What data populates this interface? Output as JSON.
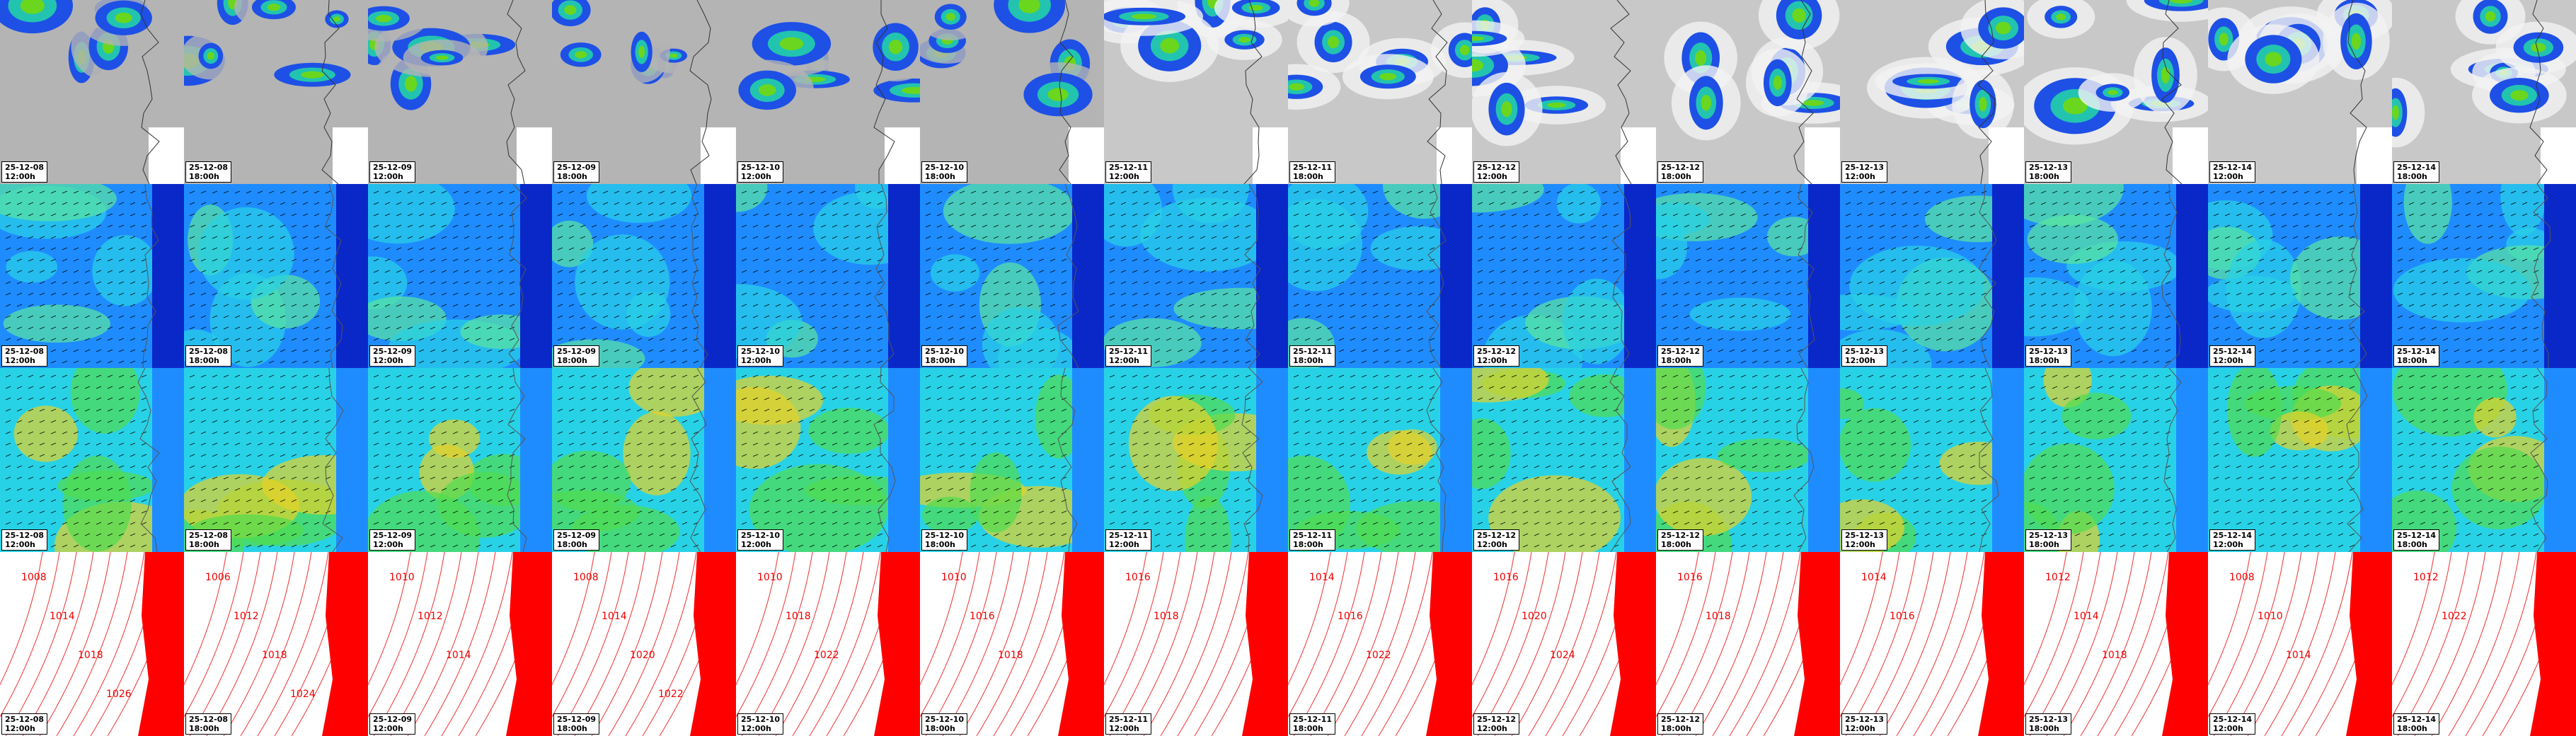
{
  "columns": [
    {
      "date": "25-12-08",
      "time": "12:00h"
    },
    {
      "date": "25-12-08",
      "time": "18:00h"
    },
    {
      "date": "25-12-09",
      "time": "12:00h"
    },
    {
      "date": "25-12-09",
      "time": "18:00h"
    },
    {
      "date": "25-12-10",
      "time": "12:00h"
    },
    {
      "date": "25-12-10",
      "time": "18:00h"
    },
    {
      "date": "25-12-11",
      "time": "12:00h"
    },
    {
      "date": "25-12-11",
      "time": "18:00h"
    },
    {
      "date": "25-12-12",
      "time": "12:00h"
    },
    {
      "date": "25-12-12",
      "time": "18:00h"
    },
    {
      "date": "25-12-13",
      "time": "12:00h"
    },
    {
      "date": "25-12-13",
      "time": "18:00h"
    },
    {
      "date": "25-12-14",
      "time": "12:00h"
    },
    {
      "date": "25-12-14",
      "time": "18:00h"
    }
  ],
  "isobars": [
    [
      "1008",
      "1014",
      "1018",
      "1026"
    ],
    [
      "1006",
      "1012",
      "1018",
      "1024"
    ],
    [
      "1010",
      "1012",
      "1014"
    ],
    [
      "1008",
      "1014",
      "1020",
      "1022"
    ],
    [
      "1010",
      "1018",
      "1022"
    ],
    [
      "1010",
      "1016",
      "1018"
    ],
    [
      "1016",
      "1018"
    ],
    [
      "1014",
      "1016",
      "1022"
    ],
    [
      "1016",
      "1020",
      "1024"
    ],
    [
      "1016",
      "1018"
    ],
    [
      "1014",
      "1016"
    ],
    [
      "1012",
      "1014",
      "1018"
    ],
    [
      "1008",
      "1010",
      "1014"
    ],
    [
      "1012",
      "1022"
    ]
  ]
}
